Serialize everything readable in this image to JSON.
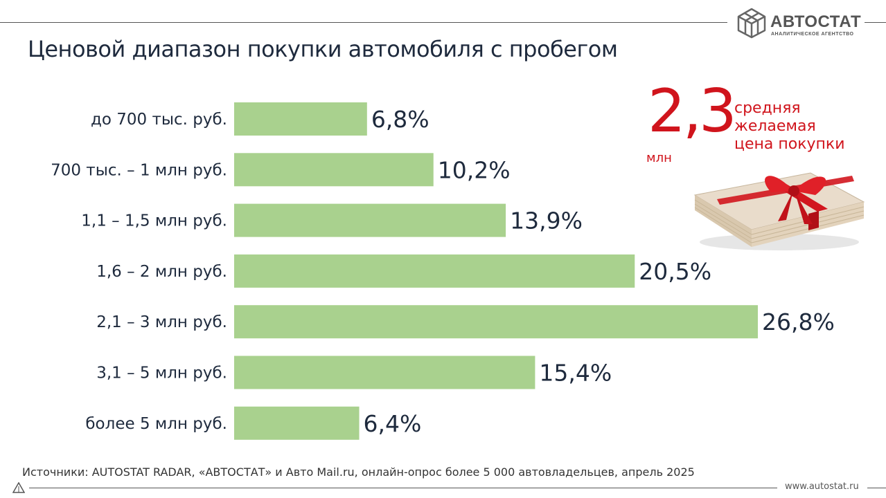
{
  "header": {
    "logo_name": "АВТОСТАТ",
    "logo_subtitle": "АНАЛИТИЧЕСКОЕ АГЕНТСТВО",
    "title": "Ценовой диапазон покупки автомобиля с пробегом"
  },
  "chart_data": {
    "type": "bar",
    "orientation": "horizontal",
    "title": "Ценовой диапазон покупки автомобиля с пробегом",
    "categories": [
      "до 700 тыс. руб.",
      "700 тыс. – 1 млн руб.",
      "1,1 – 1,5 млн руб.",
      "1,6 – 2 млн руб.",
      "2,1 – 3 млн руб.",
      "3,1 – 5 млн руб.",
      "более 5 млн руб."
    ],
    "values": [
      6.8,
      10.2,
      13.9,
      20.5,
      26.8,
      15.4,
      6.4
    ],
    "value_labels": [
      "6,8%",
      "10,2%",
      "13,9%",
      "20,5%",
      "26,8%",
      "15,4%",
      "6,4%"
    ],
    "unit": "%",
    "xlim": [
      0,
      26.8
    ],
    "grid": false,
    "bar_color": "#a9d18e"
  },
  "callout": {
    "value": "2,3",
    "unit": "млн",
    "lines": [
      "средняя",
      "желаемая",
      "цена покупки"
    ],
    "color": "#d0141c"
  },
  "footer": {
    "source": "Источники: AUTOSTAT RADAR, «АВТОСТАТ» и Авто Mail.ru, онлайн-опрос более 5 000 автовладельцев, апрель 2025",
    "website": "www.autostat.ru"
  },
  "icons": {
    "logo": "autostat-logo-icon",
    "money": "money-stack-gift-icon",
    "corner": "triangle-logo-icon"
  }
}
